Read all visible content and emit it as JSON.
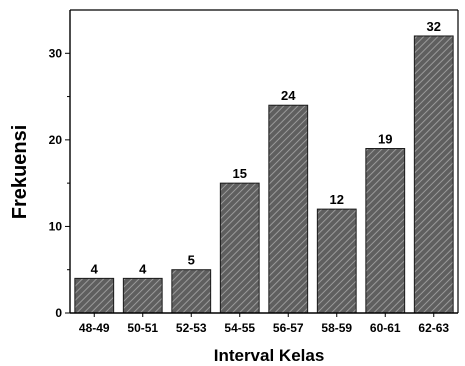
{
  "chart_data": {
    "type": "bar",
    "title": "",
    "xlabel": "Interval Kelas",
    "ylabel": "Frekuensi",
    "categories": [
      "48-49",
      "50-51",
      "52-53",
      "54-55",
      "56-57",
      "58-59",
      "60-61",
      "62-63"
    ],
    "values": [
      4,
      4,
      5,
      15,
      24,
      12,
      19,
      32
    ],
    "data_labels": [
      "4",
      "4",
      "5",
      "15",
      "24",
      "12",
      "19",
      "32"
    ],
    "ylim": [
      0,
      35
    ],
    "yticks": [
      0,
      10,
      20,
      30
    ],
    "yticks_labels": [
      "0",
      "10",
      "20",
      "30"
    ],
    "grid": false,
    "legend": "none",
    "bar_fill": "hatched",
    "colors": {
      "bar_base": "#5f5f5f",
      "bar_hatch": "#9a9a9a",
      "bar_edge": "#1a1a1a",
      "axis": "#000000"
    }
  }
}
